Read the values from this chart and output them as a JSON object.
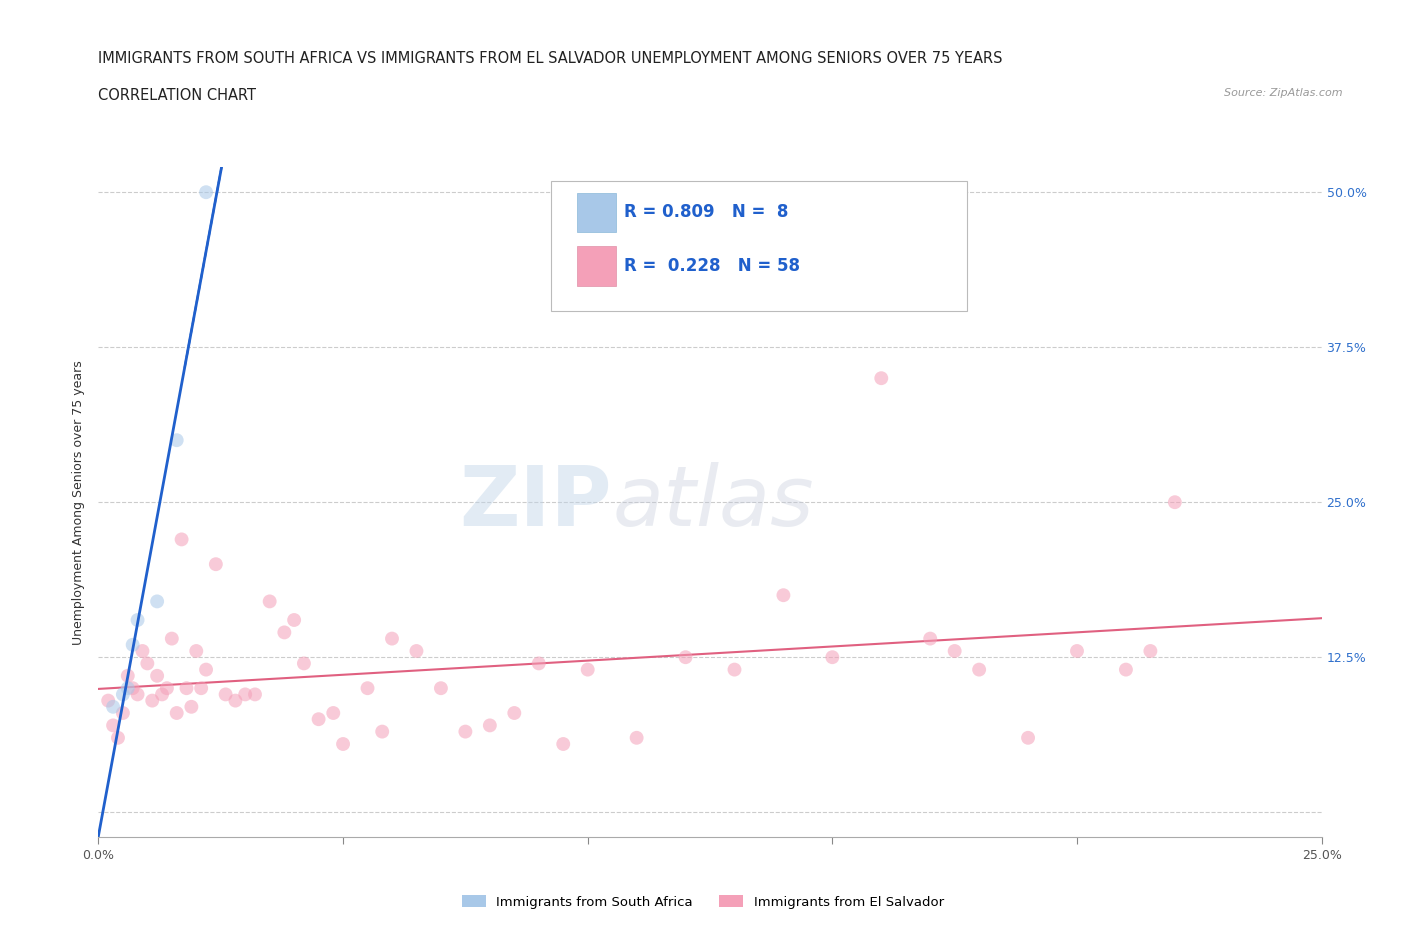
{
  "title_line1": "IMMIGRANTS FROM SOUTH AFRICA VS IMMIGRANTS FROM EL SALVADOR UNEMPLOYMENT AMONG SENIORS OVER 75 YEARS",
  "title_line2": "CORRELATION CHART",
  "source": "Source: ZipAtlas.com",
  "ylabel": "Unemployment Among Seniors over 75 years",
  "watermark_zip": "ZIP",
  "watermark_atlas": "atlas",
  "xlim": [
    0.0,
    0.25
  ],
  "ylim": [
    -0.02,
    0.52
  ],
  "x_ticks": [
    0.0,
    0.05,
    0.1,
    0.15,
    0.2,
    0.25
  ],
  "x_tick_labels": [
    "0.0%",
    "",
    "",
    "",
    "",
    "25.0%"
  ],
  "y_ticks": [
    0.0,
    0.125,
    0.25,
    0.375,
    0.5
  ],
  "y_tick_labels_right": [
    "",
    "12.5%",
    "25.0%",
    "37.5%",
    "50.0%"
  ],
  "south_africa_R": 0.809,
  "south_africa_N": 8,
  "el_salvador_R": 0.228,
  "el_salvador_N": 58,
  "south_africa_color": "#a8c8e8",
  "el_salvador_color": "#f4a0b8",
  "south_africa_line_color": "#2060cc",
  "el_salvador_line_color": "#e06080",
  "south_africa_x": [
    0.003,
    0.005,
    0.006,
    0.007,
    0.008,
    0.012,
    0.016,
    0.022
  ],
  "south_africa_y": [
    0.085,
    0.095,
    0.1,
    0.135,
    0.155,
    0.17,
    0.3,
    0.5
  ],
  "el_salvador_x": [
    0.002,
    0.003,
    0.004,
    0.005,
    0.006,
    0.007,
    0.008,
    0.009,
    0.01,
    0.011,
    0.012,
    0.013,
    0.014,
    0.015,
    0.016,
    0.017,
    0.018,
    0.019,
    0.02,
    0.021,
    0.022,
    0.024,
    0.026,
    0.028,
    0.03,
    0.032,
    0.035,
    0.038,
    0.04,
    0.042,
    0.045,
    0.048,
    0.05,
    0.055,
    0.058,
    0.06,
    0.065,
    0.07,
    0.075,
    0.08,
    0.085,
    0.09,
    0.095,
    0.1,
    0.11,
    0.12,
    0.13,
    0.14,
    0.15,
    0.16,
    0.17,
    0.175,
    0.18,
    0.19,
    0.2,
    0.21,
    0.215,
    0.22
  ],
  "el_salvador_y": [
    0.09,
    0.07,
    0.06,
    0.08,
    0.11,
    0.1,
    0.095,
    0.13,
    0.12,
    0.09,
    0.11,
    0.095,
    0.1,
    0.14,
    0.08,
    0.22,
    0.1,
    0.085,
    0.13,
    0.1,
    0.115,
    0.2,
    0.095,
    0.09,
    0.095,
    0.095,
    0.17,
    0.145,
    0.155,
    0.12,
    0.075,
    0.08,
    0.055,
    0.1,
    0.065,
    0.14,
    0.13,
    0.1,
    0.065,
    0.07,
    0.08,
    0.12,
    0.055,
    0.115,
    0.06,
    0.125,
    0.115,
    0.175,
    0.125,
    0.35,
    0.14,
    0.13,
    0.115,
    0.06,
    0.13,
    0.115,
    0.13,
    0.25
  ],
  "marker_size": 100,
  "marker_alpha": 0.55,
  "grid_color": "#cccccc",
  "background_color": "#ffffff",
  "title_fontsize": 10.5,
  "subtitle_fontsize": 10.5,
  "axis_label_fontsize": 9,
  "tick_fontsize": 9,
  "right_tick_color": "#3070cc",
  "legend_text_color": "#2060cc",
  "legend_num_color": "#2060cc"
}
